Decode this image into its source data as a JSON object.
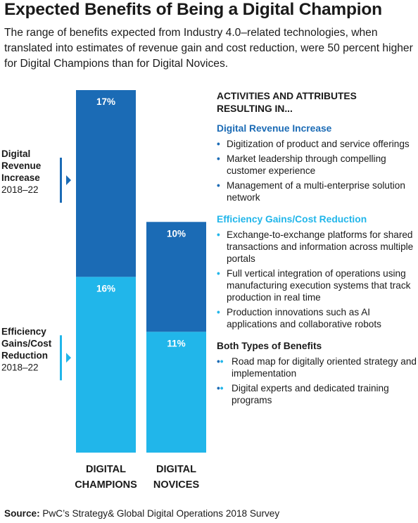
{
  "title": "Expected Benefits of Being a Digital Champion",
  "subtitle": "The range of benefits expected from Industry 4.0–related technologies, when translated into estimates of revenue gain and cost reduction, were 50 percent higher for Digital Champions than for Digital Novices.",
  "colors": {
    "revenue": "#1b6bb5",
    "efficiency": "#21b6ea",
    "revenue_text": "#1b6bb5",
    "efficiency_text": "#21b6ea"
  },
  "chart_data": {
    "type": "bar",
    "stacked": true,
    "categories": [
      "DIGITAL CHAMPIONS",
      "DIGITAL NOVICES"
    ],
    "category_lines": [
      [
        "DIGITAL",
        "CHAMPIONS"
      ],
      [
        "DIGITAL",
        "NOVICES"
      ]
    ],
    "series": [
      {
        "name": "Efficiency Gains/Cost Reduction",
        "name_lines": [
          "Efficiency",
          "Gains/Cost",
          "Reduction"
        ],
        "period": "2018–22",
        "values": [
          16,
          11
        ],
        "labels": [
          "16%",
          "11%"
        ],
        "color": "#21b6ea"
      },
      {
        "name": "Digital Revenue Increase",
        "name_lines": [
          "Digital",
          "Revenue",
          "Increase"
        ],
        "period": "2018–22",
        "values": [
          17,
          10
        ],
        "labels": [
          "17%",
          "10%"
        ],
        "color": "#1b6bb5"
      }
    ],
    "ylim": [
      0,
      33
    ],
    "grid": false,
    "legend": "left"
  },
  "panel": {
    "heading_lines": [
      "ACTIVITIES AND ATTRIBUTES",
      "RESULTING IN..."
    ],
    "groups": [
      {
        "title": "Digital Revenue Increase",
        "color": "#1b6bb5",
        "bullet": "•",
        "items": [
          "Digitization of product and service offerings",
          "Market leadership through compelling customer experience",
          "Management of a multi-enterprise solution network"
        ]
      },
      {
        "title": "Efficiency Gains/Cost Reduction",
        "color": "#21b6ea",
        "bullet": "•",
        "items": [
          "Exchange-to-exchange platforms for shared transactions and information across multiple portals",
          "Full vertical integration of operations using manufacturing execution systems that track production in real time",
          "Production innovations such as AI applications and collaborative robots"
        ]
      },
      {
        "title": "Both Types of Benefits",
        "color": "#1a1a1a",
        "bullet": "••",
        "items": [
          "Road map for digitally oriented strategy and implementation",
          "Digital experts and dedicated training programs"
        ]
      }
    ]
  },
  "source": {
    "label": "Source:",
    "text": "PwC’s Strategy& Global Digital Operations 2018 Survey"
  }
}
